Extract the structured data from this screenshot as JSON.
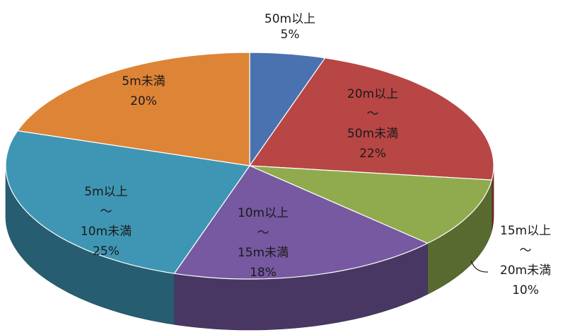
{
  "chart_data": {
    "type": "pie",
    "style": "3d",
    "slices": [
      {
        "label_lines": [
          "50m以上"
        ],
        "label": "50m以上",
        "percent": "5%",
        "value": 5,
        "color": "#4a72b0"
      },
      {
        "label_lines": [
          "20m以上",
          "～",
          "50m未満"
        ],
        "label": "20m以上～50m未満",
        "percent": "22%",
        "value": 22,
        "color": "#b84644"
      },
      {
        "label_lines": [
          "15m以上",
          "～",
          "20m未満"
        ],
        "label": "15m以上～20m未満",
        "percent": "10%",
        "value": 10,
        "color": "#90ab4e"
      },
      {
        "label_lines": [
          "10m以上",
          "～",
          "15m未満"
        ],
        "label": "10m以上～15m未満",
        "percent": "18%",
        "value": 18,
        "color": "#7659a0"
      },
      {
        "label_lines": [
          "5m以上",
          "～",
          "10m未満"
        ],
        "label": "5m以上～10m未満",
        "percent": "25%",
        "value": 25,
        "color": "#3f96b4"
      },
      {
        "label_lines": [
          "5m未満"
        ],
        "label": "5m未満",
        "percent": "20%",
        "value": 20,
        "color": "#de8436"
      }
    ]
  }
}
